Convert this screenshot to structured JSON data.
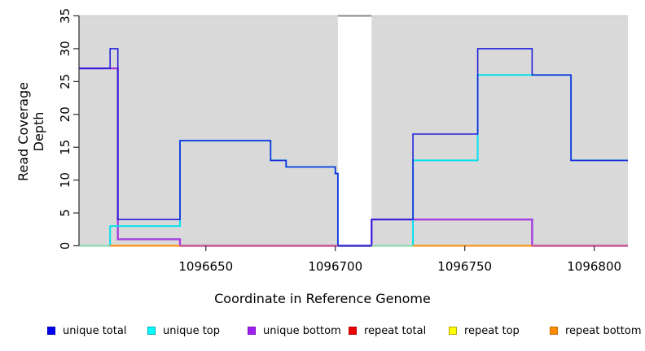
{
  "chart_data": {
    "type": "line",
    "subtype": "step-coverage-plot",
    "title": "",
    "xlabel": "Coordinate in Reference Genome",
    "ylabel": "Read Coverage Depth",
    "xlim": [
      1096601,
      1096813
    ],
    "ylim": [
      0,
      35
    ],
    "x_ticks": [
      "1096650",
      "1096700",
      "1096750",
      "1096800"
    ],
    "x_tick_values": [
      1096650,
      1096700,
      1096750,
      1096800
    ],
    "y_ticks": [
      "0",
      "5",
      "10",
      "15",
      "20",
      "25",
      "30",
      "35"
    ],
    "y_tick_values": [
      0,
      5,
      10,
      15,
      20,
      25,
      30,
      35
    ],
    "grid": "off",
    "legend_position": "bottom",
    "background_band": {
      "from_y": 0,
      "to_y": 35,
      "color": "#d9d9d9",
      "top_edge_color": "#c4c4c4"
    },
    "masked_region": {
      "from_x": 1096701,
      "to_x": 1096714,
      "fill": "#ffffff",
      "top_border_color": "#8a8a8a"
    },
    "series": [
      {
        "name": "repeat top",
        "legend_color": "#ffff00",
        "line_color": "#ffff00",
        "line_width": 1.2,
        "points": [
          [
            1096601,
            0
          ]
        ],
        "end_x": 1096813
      },
      {
        "name": "repeat bottom",
        "legend_color": "#ff8c00",
        "line_color": "#ff8c00",
        "line_width": 1.4,
        "points": [
          [
            1096601,
            0
          ]
        ],
        "end_x": 1096813
      },
      {
        "name": "repeat total",
        "legend_color": "#ee0000",
        "line_color": "#ee0000",
        "line_width": 1.2,
        "points": [
          [
            1096601,
            0
          ]
        ],
        "end_x": 1096813
      },
      {
        "name": "unique bottom",
        "legend_color": "#a020f0",
        "line_color": "#a43ee0",
        "line_width": 2.4,
        "points": [
          [
            1096601,
            27
          ],
          [
            1096616,
            1
          ],
          [
            1096640,
            0
          ],
          [
            1096714,
            4
          ],
          [
            1096776,
            0
          ]
        ],
        "end_x": 1096813
      },
      {
        "name": "unique top",
        "legend_color": "#00ffff",
        "line_color": "#00e2ec",
        "line_width": 2.0,
        "points": [
          [
            1096601,
            0
          ],
          [
            1096613,
            3
          ],
          [
            1096640,
            16
          ],
          [
            1096675,
            13
          ],
          [
            1096681,
            12
          ],
          [
            1096700,
            11
          ],
          [
            1096701,
            0
          ],
          [
            1096730,
            13
          ],
          [
            1096755,
            26
          ],
          [
            1096791,
            13
          ]
        ],
        "end_x": 1096813
      },
      {
        "name": "unique total",
        "legend_color": "#0000ee",
        "line_color": "#2121dc",
        "line_width": 1.6,
        "points": [
          [
            1096601,
            27
          ],
          [
            1096613,
            30
          ],
          [
            1096616,
            4
          ],
          [
            1096640,
            16
          ],
          [
            1096675,
            13
          ],
          [
            1096681,
            12
          ],
          [
            1096700,
            11
          ],
          [
            1096701,
            0
          ],
          [
            1096714,
            4
          ],
          [
            1096730,
            17
          ],
          [
            1096755,
            30
          ],
          [
            1096776,
            26
          ],
          [
            1096791,
            13
          ]
        ],
        "end_x": 1096813
      }
    ],
    "baseline_visible_segments": [
      {
        "from_x": 1096601,
        "to_x": 1096613,
        "color": "#95d6a0",
        "note": "cyan+yellow overlap at 0"
      },
      {
        "from_x": 1096613,
        "to_x": 1096640,
        "color": "#ff8c00",
        "note": "repeat bottom on top"
      },
      {
        "from_x": 1096640,
        "to_x": 1096701,
        "color": "#d95f7f",
        "note": "red+purple overlap at 0"
      },
      {
        "from_x": 1096701,
        "to_x": 1096714,
        "color": "#2a22cc",
        "note": "unique total at 0 across masked region"
      },
      {
        "from_x": 1096714,
        "to_x": 1096730,
        "color": "#95d6a0",
        "note": "cyan+yellow overlap at 0"
      },
      {
        "from_x": 1096730,
        "to_x": 1096776,
        "color": "#ff8c00",
        "note": "repeat bottom on top"
      },
      {
        "from_x": 1096776,
        "to_x": 1096813,
        "color": "#d95f7f",
        "note": "red+purple overlap at 0"
      }
    ],
    "legend": [
      {
        "label": "unique total",
        "color": "#0000ee",
        "border": "#0000b0"
      },
      {
        "label": "unique top",
        "color": "#00ffff",
        "border": "#00aab4"
      },
      {
        "label": "unique bottom",
        "color": "#a020f0",
        "border": "#7a10bc"
      },
      {
        "label": "repeat total",
        "color": "#ee0000",
        "border": "#b00000"
      },
      {
        "label": "repeat top",
        "color": "#ffff00",
        "border": "#b4a400"
      },
      {
        "label": "repeat bottom",
        "color": "#ff8c00",
        "border": "#c06a00"
      }
    ]
  }
}
